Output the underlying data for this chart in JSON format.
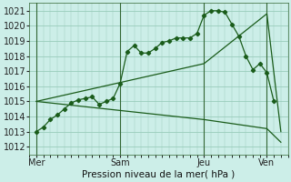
{
  "bg_color": "#cceee8",
  "grid_color": "#99ccbb",
  "line_color": "#1a5c1a",
  "title": "Pression niveau de la mer( hPa )",
  "ylim": [
    1011.5,
    1021.5
  ],
  "yticks": [
    1012,
    1013,
    1014,
    1015,
    1016,
    1017,
    1018,
    1019,
    1020,
    1021
  ],
  "day_labels": [
    "Mer",
    "Sam",
    "Jeu",
    "Ven"
  ],
  "day_positions": [
    0,
    12,
    24,
    33
  ],
  "xlim": [
    -1,
    36
  ],
  "series1_x": [
    0,
    1,
    2,
    3,
    4,
    5,
    6,
    7,
    8,
    9,
    10,
    11,
    12,
    13,
    14,
    15,
    16,
    17,
    18,
    19,
    20,
    21,
    22,
    23,
    24,
    25,
    26,
    27,
    28,
    29,
    30,
    31,
    32,
    33,
    34
  ],
  "series1_y": [
    1013.0,
    1013.3,
    1013.8,
    1014.1,
    1014.5,
    1014.9,
    1015.1,
    1015.2,
    1015.3,
    1014.8,
    1015.0,
    1015.2,
    1016.2,
    1018.3,
    1018.7,
    1018.2,
    1018.2,
    1018.5,
    1018.9,
    1019.0,
    1019.2,
    1019.2,
    1019.2,
    1019.5,
    1020.7,
    1021.0,
    1021.0,
    1020.9,
    1020.1,
    1019.3,
    1018.0,
    1017.1,
    1017.5,
    1016.9,
    1015.0
  ],
  "series2_x": [
    0,
    24,
    33,
    35
  ],
  "series2_y": [
    1015.0,
    1017.5,
    1020.8,
    1013.0
  ],
  "series3_x": [
    0,
    24,
    33,
    35
  ],
  "series3_y": [
    1015.0,
    1013.8,
    1013.2,
    1012.3
  ],
  "vline_positions": [
    0,
    12,
    24,
    33
  ]
}
